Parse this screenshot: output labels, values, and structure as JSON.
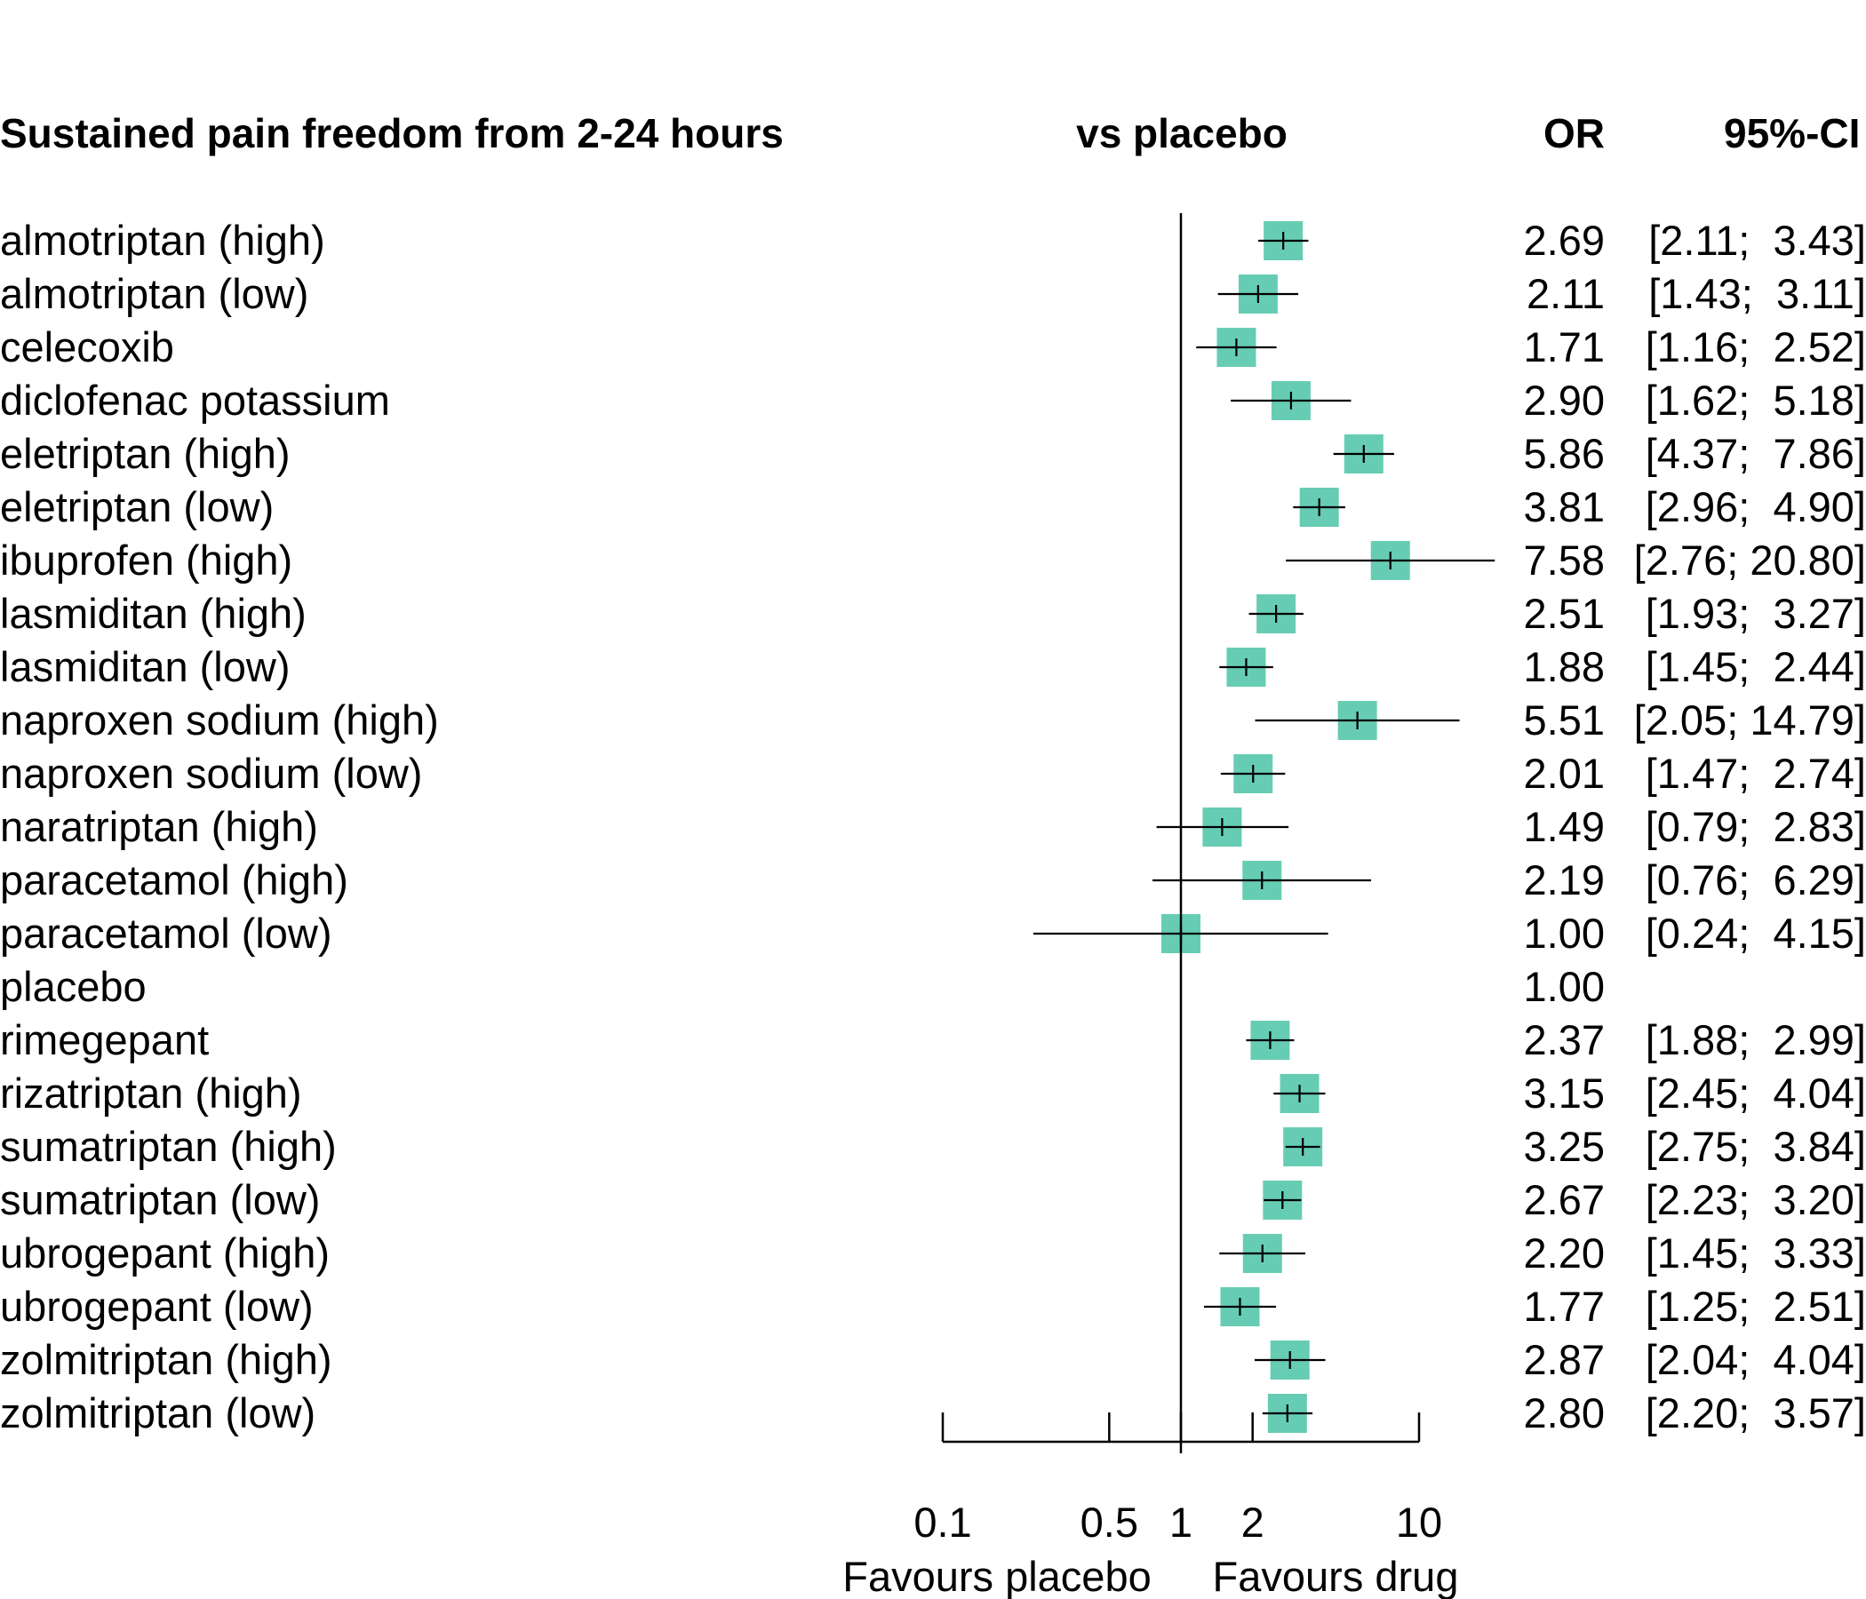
{
  "chart_data": {
    "type": "forest",
    "title": "Sustained pain freedom from 2-24 hours",
    "comparison_header": "vs placebo",
    "estimate_header": "OR",
    "ci_header": "95%-CI",
    "x_scale": "log",
    "xlim": [
      0.1,
      10
    ],
    "x_ticks": [
      "0.1",
      "0.5",
      "1",
      "2",
      "10"
    ],
    "x_tick_values": [
      0.1,
      0.5,
      1,
      2,
      10
    ],
    "reference_line": 1,
    "favours_left": "Favours placebo",
    "favours_right": "Favours drug",
    "box_color": "#66CDB4",
    "rows": [
      {
        "name": "almotriptan (high)",
        "or": 2.69,
        "lower": 2.11,
        "upper": 3.43,
        "or_text": "2.69",
        "ci_text": "[2.11;  3.43]"
      },
      {
        "name": "almotriptan (low)",
        "or": 2.11,
        "lower": 1.43,
        "upper": 3.11,
        "or_text": "2.11",
        "ci_text": "[1.43;  3.11]"
      },
      {
        "name": "celecoxib",
        "or": 1.71,
        "lower": 1.16,
        "upper": 2.52,
        "or_text": "1.71",
        "ci_text": "[1.16;  2.52]"
      },
      {
        "name": "diclofenac potassium",
        "or": 2.9,
        "lower": 1.62,
        "upper": 5.18,
        "or_text": "2.90",
        "ci_text": "[1.62;  5.18]"
      },
      {
        "name": "eletriptan (high)",
        "or": 5.86,
        "lower": 4.37,
        "upper": 7.86,
        "or_text": "5.86",
        "ci_text": "[4.37;  7.86]"
      },
      {
        "name": "eletriptan (low)",
        "or": 3.81,
        "lower": 2.96,
        "upper": 4.9,
        "or_text": "3.81",
        "ci_text": "[2.96;  4.90]"
      },
      {
        "name": "ibuprofen (high)",
        "or": 7.58,
        "lower": 2.76,
        "upper": 20.8,
        "or_text": "7.58",
        "ci_text": "[2.76; 20.80]"
      },
      {
        "name": "lasmiditan (high)",
        "or": 2.51,
        "lower": 1.93,
        "upper": 3.27,
        "or_text": "2.51",
        "ci_text": "[1.93;  3.27]"
      },
      {
        "name": "lasmiditan (low)",
        "or": 1.88,
        "lower": 1.45,
        "upper": 2.44,
        "or_text": "1.88",
        "ci_text": "[1.45;  2.44]"
      },
      {
        "name": "naproxen sodium (high)",
        "or": 5.51,
        "lower": 2.05,
        "upper": 14.79,
        "or_text": "5.51",
        "ci_text": "[2.05; 14.79]"
      },
      {
        "name": "naproxen sodium (low)",
        "or": 2.01,
        "lower": 1.47,
        "upper": 2.74,
        "or_text": "2.01",
        "ci_text": "[1.47;  2.74]"
      },
      {
        "name": "naratriptan (high)",
        "or": 1.49,
        "lower": 0.79,
        "upper": 2.83,
        "or_text": "1.49",
        "ci_text": "[0.79;  2.83]"
      },
      {
        "name": "paracetamol (high)",
        "or": 2.19,
        "lower": 0.76,
        "upper": 6.29,
        "or_text": "2.19",
        "ci_text": "[0.76;  6.29]"
      },
      {
        "name": "paracetamol (low)",
        "or": 1.0,
        "lower": 0.24,
        "upper": 4.15,
        "or_text": "1.00",
        "ci_text": "[0.24;  4.15]"
      },
      {
        "name": "placebo",
        "or": 1.0,
        "lower": null,
        "upper": null,
        "or_text": "1.00",
        "ci_text": ""
      },
      {
        "name": "rimegepant",
        "or": 2.37,
        "lower": 1.88,
        "upper": 2.99,
        "or_text": "2.37",
        "ci_text": "[1.88;  2.99]"
      },
      {
        "name": "rizatriptan (high)",
        "or": 3.15,
        "lower": 2.45,
        "upper": 4.04,
        "or_text": "3.15",
        "ci_text": "[2.45;  4.04]"
      },
      {
        "name": "sumatriptan (high)",
        "or": 3.25,
        "lower": 2.75,
        "upper": 3.84,
        "or_text": "3.25",
        "ci_text": "[2.75;  3.84]"
      },
      {
        "name": "sumatriptan (low)",
        "or": 2.67,
        "lower": 2.23,
        "upper": 3.2,
        "or_text": "2.67",
        "ci_text": "[2.23;  3.20]"
      },
      {
        "name": "ubrogepant (high)",
        "or": 2.2,
        "lower": 1.45,
        "upper": 3.33,
        "or_text": "2.20",
        "ci_text": "[1.45;  3.33]"
      },
      {
        "name": "ubrogepant (low)",
        "or": 1.77,
        "lower": 1.25,
        "upper": 2.51,
        "or_text": "1.77",
        "ci_text": "[1.25;  2.51]"
      },
      {
        "name": "zolmitriptan (high)",
        "or": 2.87,
        "lower": 2.04,
        "upper": 4.04,
        "or_text": "2.87",
        "ci_text": "[2.04;  4.04]"
      },
      {
        "name": "zolmitriptan (low)",
        "or": 2.8,
        "lower": 2.2,
        "upper": 3.57,
        "or_text": "2.80",
        "ci_text": "[2.20;  3.57]"
      }
    ]
  }
}
